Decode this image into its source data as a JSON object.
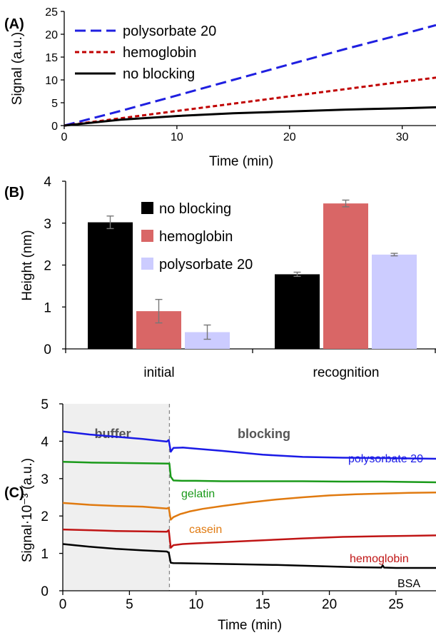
{
  "chart_data": [
    {
      "type": "line",
      "panel_label": "(A)",
      "xlabel": "Time (min)",
      "ylabel": "Signal (a.u.)",
      "xlim": [
        0,
        33
      ],
      "ylim": [
        0,
        25
      ],
      "xticks": [
        0,
        10,
        20,
        30
      ],
      "yticks": [
        0,
        5,
        10,
        15,
        20,
        25
      ],
      "grid": false,
      "legend_position": "top-left",
      "series": [
        {
          "name": "polysorbate 20",
          "color": "#1f1fe0",
          "dash": "long-dash",
          "x": [
            0,
            5,
            10,
            15,
            20,
            25,
            30,
            33
          ],
          "y": [
            0,
            3.2,
            6.6,
            10.0,
            13.4,
            16.8,
            20.0,
            22.0
          ]
        },
        {
          "name": "hemoglobin",
          "color": "#c00000",
          "dash": "short-dash",
          "x": [
            0,
            5,
            10,
            15,
            20,
            25,
            30,
            33
          ],
          "y": [
            0,
            1.6,
            3.2,
            4.8,
            6.4,
            8.0,
            9.6,
            10.5
          ]
        },
        {
          "name": "no blocking",
          "color": "#000000",
          "dash": "solid",
          "x": [
            0,
            5,
            10,
            15,
            20,
            25,
            30,
            33
          ],
          "y": [
            0,
            1.3,
            2.1,
            2.7,
            3.1,
            3.5,
            3.8,
            4.0
          ]
        }
      ]
    },
    {
      "type": "bar",
      "panel_label": "(B)",
      "ylabel": "Height (nm)",
      "categories": [
        "initial",
        "recognition"
      ],
      "ylim": [
        0,
        4
      ],
      "yticks": [
        0,
        1,
        2,
        3,
        4
      ],
      "grid": false,
      "legend_position": "top-left",
      "series": [
        {
          "name": "no blocking",
          "color": "#000000",
          "values": [
            3.02,
            1.78
          ],
          "errors": [
            0.15,
            0.05
          ]
        },
        {
          "name": "hemoglobin",
          "color": "#d96666",
          "values": [
            0.9,
            3.47
          ],
          "errors": [
            0.28,
            0.08
          ]
        },
        {
          "name": "polysorbate 20",
          "color": "#ccccff",
          "values": [
            0.4,
            2.25
          ],
          "errors": [
            0.17,
            0.03
          ]
        }
      ]
    },
    {
      "type": "line",
      "panel_label": "(C)",
      "xlabel": "Time (min)",
      "ylabel": "Signal·10⁻³ (a.u.)",
      "xlim": [
        0,
        28
      ],
      "ylim": [
        0,
        5
      ],
      "xticks": [
        0,
        5,
        10,
        15,
        20,
        25
      ],
      "yticks": [
        0,
        1,
        2,
        3,
        4,
        5
      ],
      "grid": false,
      "regions": [
        {
          "label": "buffer",
          "from": 0,
          "to": 8,
          "shaded": true
        },
        {
          "label": "blocking",
          "from": 8,
          "to": 28,
          "shaded": false
        }
      ],
      "divider_x": 8,
      "series": [
        {
          "name": "polysorbate 20",
          "color": "#1a1ae6",
          "x": [
            0,
            2,
            4,
            6,
            7.8,
            7.95,
            8.1,
            8.3,
            9,
            10,
            12,
            15,
            18,
            21,
            24,
            26,
            28
          ],
          "y": [
            4.26,
            4.18,
            4.12,
            4.06,
            3.99,
            4.03,
            3.72,
            3.82,
            3.83,
            3.8,
            3.74,
            3.64,
            3.58,
            3.56,
            3.55,
            3.54,
            3.53
          ]
        },
        {
          "name": "gelatin",
          "color": "#1a9a1a",
          "x": [
            0,
            2,
            4,
            6,
            7.9,
            8.0,
            8.1,
            8.3,
            9,
            10,
            12,
            15,
            18,
            21,
            24,
            26,
            28
          ],
          "y": [
            3.45,
            3.43,
            3.42,
            3.41,
            3.4,
            3.4,
            3.05,
            2.95,
            2.94,
            2.94,
            2.93,
            2.93,
            2.93,
            2.92,
            2.92,
            2.91,
            2.9
          ]
        },
        {
          "name": "casein",
          "color": "#e07a10",
          "x": [
            0,
            2,
            4,
            6,
            7.8,
            7.95,
            8.1,
            8.3,
            8.8,
            9.5,
            10.5,
            12,
            14,
            16,
            18,
            20,
            22,
            24,
            26,
            28
          ],
          "y": [
            2.35,
            2.3,
            2.27,
            2.25,
            2.2,
            2.22,
            1.9,
            1.97,
            2.05,
            2.12,
            2.19,
            2.27,
            2.36,
            2.44,
            2.5,
            2.55,
            2.58,
            2.6,
            2.62,
            2.63
          ]
        },
        {
          "name": "hemoglobin",
          "color": "#c01515",
          "x": [
            0,
            2,
            4,
            6,
            7.8,
            7.95,
            8.1,
            8.3,
            9,
            10,
            12,
            15,
            18,
            21,
            24,
            26,
            28
          ],
          "y": [
            1.64,
            1.62,
            1.6,
            1.59,
            1.58,
            1.62,
            1.15,
            1.22,
            1.25,
            1.27,
            1.3,
            1.35,
            1.4,
            1.44,
            1.46,
            1.47,
            1.48
          ]
        },
        {
          "name": "BSA",
          "color": "#000000",
          "x": [
            0,
            2,
            4,
            6,
            7.8,
            7.95,
            8.1,
            8.3,
            10,
            13,
            16,
            19,
            22,
            23.9,
            24.0,
            24.1,
            25,
            28
          ],
          "y": [
            1.25,
            1.18,
            1.12,
            1.08,
            1.05,
            1.02,
            0.75,
            0.74,
            0.73,
            0.71,
            0.69,
            0.66,
            0.63,
            0.62,
            0.68,
            0.62,
            0.61,
            0.61
          ]
        }
      ]
    }
  ]
}
